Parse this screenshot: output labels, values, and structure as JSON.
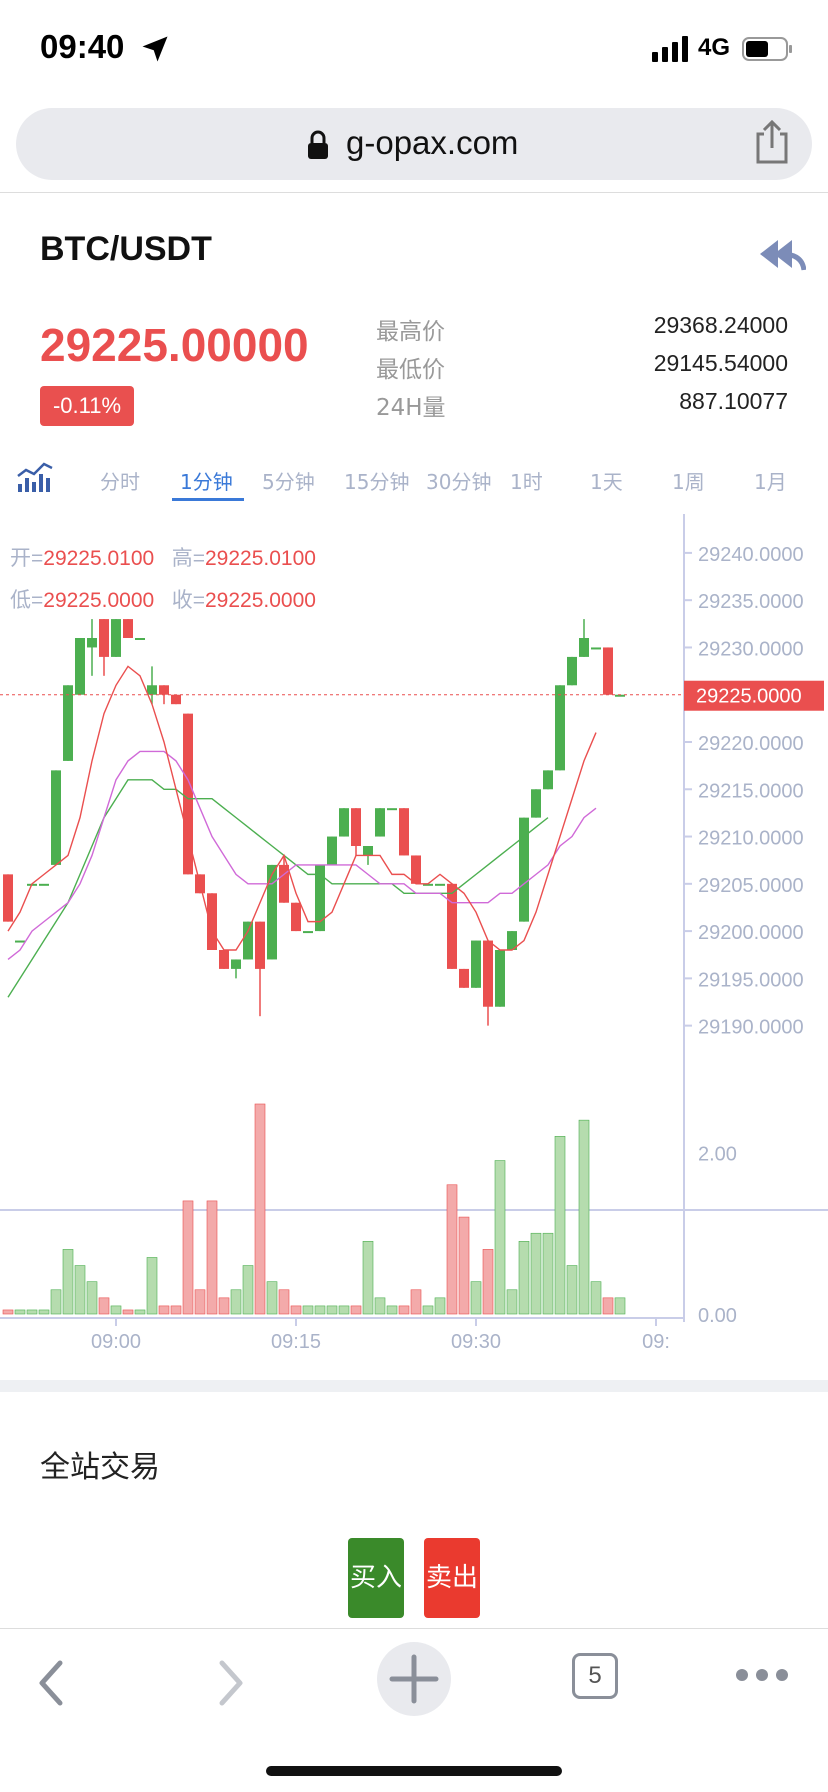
{
  "status_bar": {
    "time": "09:40",
    "network": "4G"
  },
  "browser": {
    "url": "g-opax.com",
    "tab_count": "5"
  },
  "header": {
    "pair": "BTC/USDT",
    "last_price": "29225.00000",
    "change": "-0.11%"
  },
  "stats": [
    {
      "label": "最高价",
      "value": "29368.24000"
    },
    {
      "label": "最低价",
      "value": "29145.54000"
    },
    {
      "label": "24H量",
      "value": "887.10077"
    }
  ],
  "intervals": [
    "分时",
    "1分钟",
    "5分钟",
    "15分钟",
    "30分钟",
    "1时",
    "1天",
    "1周",
    "1月"
  ],
  "active_interval": "1分钟",
  "ohlc": {
    "open_label": "开=",
    "open": "29225.0100",
    "high_label": "高=",
    "high": "29225.0100",
    "low_label": "低=",
    "low": "29225.0000",
    "close_label": "收=",
    "close": "29225.0000"
  },
  "colors": {
    "up": "#4caf50",
    "down": "#ea4f4f",
    "accent": "#3a79d8",
    "ma_red": "#ea4f4f",
    "ma_pink": "#d06ad8",
    "ma_green": "#4caf50"
  },
  "chart_data": {
    "type": "candlestick",
    "price_axis_ticks": [
      "29240.0000",
      "29235.0000",
      "29230.0000",
      "29225.0000",
      "29220.0000",
      "29215.0000",
      "29210.0000",
      "29205.0000",
      "29200.0000",
      "29195.0000",
      "29190.0000"
    ],
    "price_range": [
      29187,
      29242
    ],
    "current_price_label": "29225.0000",
    "current_price": 29225,
    "volume_axis_ticks": [
      "2.00",
      "0.00"
    ],
    "volume_range": [
      0,
      2.6
    ],
    "time_ticks": [
      "09:00",
      "09:15",
      "09:30",
      "09:"
    ],
    "candles": [
      {
        "o": 29206,
        "h": 29206,
        "l": 29201,
        "c": 29201
      },
      {
        "o": 29199,
        "h": 29199,
        "l": 29199,
        "c": 29199
      },
      {
        "o": 29205,
        "h": 29205,
        "l": 29205,
        "c": 29205
      },
      {
        "o": 29205,
        "h": 29205,
        "l": 29205,
        "c": 29205
      },
      {
        "o": 29207,
        "h": 29217,
        "l": 29207,
        "c": 29217
      },
      {
        "o": 29218,
        "h": 29226,
        "l": 29218,
        "c": 29226
      },
      {
        "o": 29225,
        "h": 29231,
        "l": 29225,
        "c": 29231
      },
      {
        "o": 29230,
        "h": 29233,
        "l": 29227,
        "c": 29231
      },
      {
        "o": 29233,
        "h": 29233,
        "l": 29227,
        "c": 29229
      },
      {
        "o": 29229,
        "h": 29233,
        "l": 29229,
        "c": 29233
      },
      {
        "o": 29233,
        "h": 29233,
        "l": 29231,
        "c": 29231
      },
      {
        "o": 29231,
        "h": 29231,
        "l": 29231,
        "c": 29231
      },
      {
        "o": 29225,
        "h": 29228,
        "l": 29224,
        "c": 29226
      },
      {
        "o": 29226,
        "h": 29226,
        "l": 29224,
        "c": 29225
      },
      {
        "o": 29225,
        "h": 29225,
        "l": 29224,
        "c": 29224
      },
      {
        "o": 29223,
        "h": 29223,
        "l": 29206,
        "c": 29206
      },
      {
        "o": 29206,
        "h": 29206,
        "l": 29204,
        "c": 29204
      },
      {
        "o": 29204,
        "h": 29204,
        "l": 29198,
        "c": 29198
      },
      {
        "o": 29198,
        "h": 29198,
        "l": 29196,
        "c": 29196
      },
      {
        "o": 29196,
        "h": 29197,
        "l": 29195,
        "c": 29197
      },
      {
        "o": 29197,
        "h": 29201,
        "l": 29197,
        "c": 29201
      },
      {
        "o": 29201,
        "h": 29201,
        "l": 29191,
        "c": 29196
      },
      {
        "o": 29197,
        "h": 29207,
        "l": 29197,
        "c": 29207
      },
      {
        "o": 29207,
        "h": 29208,
        "l": 29203,
        "c": 29203
      },
      {
        "o": 29203,
        "h": 29203,
        "l": 29200,
        "c": 29200
      },
      {
        "o": 29200,
        "h": 29200,
        "l": 29200,
        "c": 29200
      },
      {
        "o": 29200,
        "h": 29207,
        "l": 29200,
        "c": 29207
      },
      {
        "o": 29207,
        "h": 29210,
        "l": 29207,
        "c": 29210
      },
      {
        "o": 29210,
        "h": 29213,
        "l": 29210,
        "c": 29213
      },
      {
        "o": 29213,
        "h": 29213,
        "l": 29208,
        "c": 29209
      },
      {
        "o": 29208,
        "h": 29209,
        "l": 29207,
        "c": 29209
      },
      {
        "o": 29210,
        "h": 29213,
        "l": 29210,
        "c": 29213
      },
      {
        "o": 29213,
        "h": 29213,
        "l": 29213,
        "c": 29213
      },
      {
        "o": 29213,
        "h": 29213,
        "l": 29208,
        "c": 29208
      },
      {
        "o": 29208,
        "h": 29208,
        "l": 29205,
        "c": 29205
      },
      {
        "o": 29205,
        "h": 29205,
        "l": 29205,
        "c": 29205
      },
      {
        "o": 29205,
        "h": 29205,
        "l": 29205,
        "c": 29205
      },
      {
        "o": 29205,
        "h": 29205,
        "l": 29196,
        "c": 29196
      },
      {
        "o": 29196,
        "h": 29196,
        "l": 29194,
        "c": 29194
      },
      {
        "o": 29194,
        "h": 29199,
        "l": 29194,
        "c": 29199
      },
      {
        "o": 29199,
        "h": 29199,
        "l": 29190,
        "c": 29192
      },
      {
        "o": 29192,
        "h": 29198,
        "l": 29192,
        "c": 29198
      },
      {
        "o": 29198,
        "h": 29200,
        "l": 29198,
        "c": 29200
      },
      {
        "o": 29201,
        "h": 29212,
        "l": 29201,
        "c": 29212
      },
      {
        "o": 29212,
        "h": 29215,
        "l": 29212,
        "c": 29215
      },
      {
        "o": 29215,
        "h": 29217,
        "l": 29215,
        "c": 29217
      },
      {
        "o": 29217,
        "h": 29226,
        "l": 29217,
        "c": 29226
      },
      {
        "o": 29226,
        "h": 29229,
        "l": 29226,
        "c": 29229
      },
      {
        "o": 29229,
        "h": 29233,
        "l": 29229,
        "c": 29231
      },
      {
        "o": 29230,
        "h": 29230,
        "l": 29230,
        "c": 29230
      },
      {
        "o": 29230,
        "h": 29230,
        "l": 29225,
        "c": 29225
      },
      {
        "o": 29225,
        "h": 29225,
        "l": 29225,
        "c": 29225
      }
    ],
    "volumes": [
      0.05,
      0.05,
      0.05,
      0.05,
      0.3,
      0.8,
      0.6,
      0.4,
      0.2,
      0.1,
      0.05,
      0.05,
      0.7,
      0.1,
      0.1,
      1.4,
      0.3,
      1.4,
      0.2,
      0.3,
      0.6,
      2.6,
      0.4,
      0.3,
      0.1,
      0.1,
      0.1,
      0.1,
      0.1,
      0.1,
      0.9,
      0.2,
      0.1,
      0.1,
      0.3,
      0.1,
      0.2,
      1.6,
      1.2,
      0.4,
      0.8,
      1.9,
      0.3,
      0.9,
      1.0,
      1.0,
      2.2,
      0.6,
      2.4,
      0.4,
      0.2,
      0.2
    ],
    "ma_red": [
      29200,
      29202,
      29205,
      29206,
      29207,
      29208,
      29212,
      29218,
      29223,
      29226,
      29228,
      29227,
      29224,
      29220,
      29215,
      29210,
      29205,
      29200,
      29198,
      29198,
      29200,
      29203,
      29206,
      29208,
      29204,
      29201,
      29201,
      29202,
      29205,
      29208,
      29208,
      29208,
      29206,
      29206,
      29205,
      29205,
      29206,
      29205,
      29204,
      29202,
      29199,
      29198,
      29198,
      29199,
      29202,
      29206,
      29210,
      29214,
      29218,
      29221
    ],
    "ma_pink": [
      29197,
      29198,
      29200,
      29201,
      29202,
      29203,
      29205,
      29208,
      29212,
      29216,
      29218,
      29219,
      29219,
      29219,
      29218,
      29216,
      29213,
      29210,
      29208,
      29206,
      29205,
      29205,
      29205,
      29206,
      29207,
      29207,
      29207,
      29207,
      29207,
      29207,
      29206,
      29205,
      29205,
      29205,
      29204,
      29204,
      29204,
      29203,
      29203,
      29203,
      29203,
      29204,
      29204,
      29205,
      29206,
      29207,
      29209,
      29210,
      29212,
      29213
    ],
    "ma_green": [
      29193,
      29195,
      29197,
      29199,
      29201,
      29203,
      29206,
      29209,
      29212,
      29214,
      29216,
      29216,
      29216,
      29215,
      29215,
      29214,
      29214,
      29214,
      29213,
      29212,
      29211,
      29210,
      29209,
      29208,
      29207,
      29206,
      29206,
      29205,
      29205,
      29205,
      29205,
      29205,
      29205,
      29204,
      29204,
      29204,
      29204,
      29204,
      29205,
      29206,
      29207,
      29208,
      29209,
      29210,
      29211,
      29212
    ]
  }
}
